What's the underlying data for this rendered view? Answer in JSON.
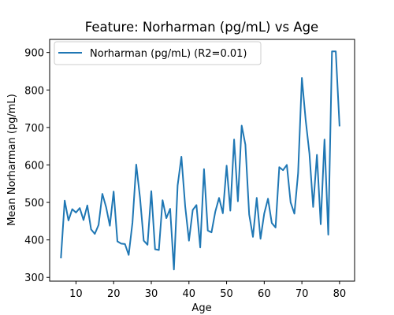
{
  "chart_data": {
    "type": "line",
    "title": "Feature: Norharman (pg/mL) vs Age",
    "xlabel": "Age",
    "ylabel": "Mean Norharman (pg/mL)",
    "xlim": [
      3,
      84
    ],
    "ylim": [
      290,
      935
    ],
    "xticks": [
      10,
      20,
      30,
      40,
      50,
      60,
      70,
      80
    ],
    "yticks": [
      300,
      400,
      500,
      600,
      700,
      800,
      900
    ],
    "grid": false,
    "legend_position": "upper-left",
    "series": [
      {
        "name": "Norharman (pg/mL) (R2=0.01)",
        "color": "#1f77b4",
        "x": [
          6,
          7,
          8,
          9,
          10,
          11,
          12,
          13,
          14,
          15,
          16,
          17,
          18,
          19,
          20,
          21,
          22,
          23,
          24,
          25,
          26,
          27,
          28,
          29,
          30,
          31,
          32,
          33,
          34,
          35,
          36,
          37,
          38,
          39,
          40,
          41,
          42,
          43,
          44,
          45,
          46,
          47,
          48,
          49,
          50,
          51,
          52,
          53,
          54,
          55,
          56,
          57,
          58,
          59,
          60,
          61,
          62,
          63,
          64,
          65,
          66,
          67,
          68,
          69,
          70,
          71,
          72,
          73,
          74,
          75,
          76,
          77,
          78,
          79,
          80
        ],
        "y": [
          351,
          505,
          452,
          482,
          473,
          485,
          453,
          492,
          428,
          416,
          440,
          523,
          487,
          438,
          529,
          396,
          390,
          389,
          360,
          446,
          601,
          512,
          398,
          387,
          530,
          375,
          373,
          506,
          458,
          483,
          321,
          545,
          622,
          490,
          398,
          480,
          493,
          380,
          589,
          425,
          420,
          475,
          512,
          471,
          598,
          478,
          668,
          503,
          705,
          654,
          468,
          408,
          512,
          403,
          470,
          510,
          445,
          433,
          594,
          586,
          600,
          500,
          470,
          578,
          832,
          720,
          630,
          488,
          627,
          442,
          668,
          414,
          903,
          903,
          703
        ]
      }
    ]
  }
}
